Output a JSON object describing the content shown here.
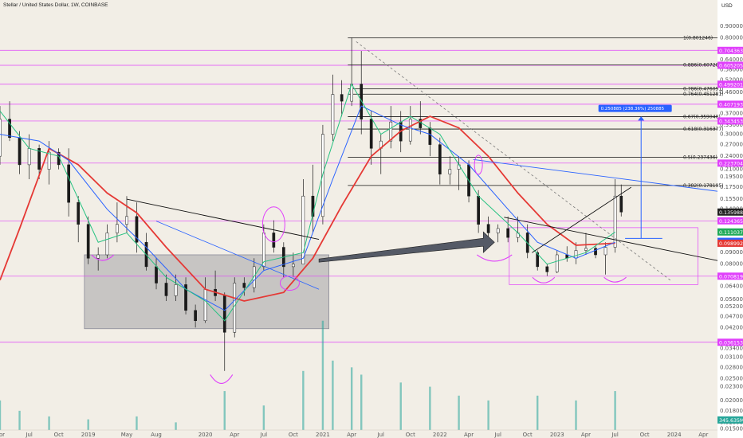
{
  "header": {
    "symbol_title": "Stellar / United States Dollar, 1W, COINBASE",
    "currency": "USD"
  },
  "chart_data": {
    "type": "candlestick",
    "title": "Stellar / United States Dollar, 1W, COINBASE",
    "y_scale": "log",
    "ylim": [
      0.0148,
      1.05
    ],
    "x_range": [
      "2018-04-01",
      "2024-05-15"
    ],
    "x_tick_labels": [
      {
        "label": "Apr",
        "date": "2018-04-01"
      },
      {
        "label": "Jul",
        "date": "2018-07-01"
      },
      {
        "label": "Oct",
        "date": "2018-10-01"
      },
      {
        "label": "2019",
        "date": "2019-01-01"
      },
      {
        "label": "May",
        "date": "2019-05-01"
      },
      {
        "label": "Aug",
        "date": "2019-08-01"
      },
      {
        "label": "2020",
        "date": "2020-01-01"
      },
      {
        "label": "Apr",
        "date": "2020-04-01"
      },
      {
        "label": "Jul",
        "date": "2020-07-01"
      },
      {
        "label": "Oct",
        "date": "2020-10-01"
      },
      {
        "label": "2021",
        "date": "2021-01-01"
      },
      {
        "label": "Apr",
        "date": "2021-04-01"
      },
      {
        "label": "Jul",
        "date": "2021-07-01"
      },
      {
        "label": "Oct",
        "date": "2021-10-01"
      },
      {
        "label": "2022",
        "date": "2022-01-01"
      },
      {
        "label": "Apr",
        "date": "2022-04-01"
      },
      {
        "label": "Jul",
        "date": "2022-07-01"
      },
      {
        "label": "Oct",
        "date": "2022-10-01"
      },
      {
        "label": "2023",
        "date": "2023-01-01"
      },
      {
        "label": "Apr",
        "date": "2023-04-01"
      },
      {
        "label": "Jul",
        "date": "2023-07-01"
      },
      {
        "label": "Oct",
        "date": "2023-10-01"
      },
      {
        "label": "2024",
        "date": "2024-01-01"
      },
      {
        "label": "Apr",
        "date": "2024-04-01"
      }
    ],
    "y_tick_labels": [
      "0.900000",
      "0.800000",
      "0.640000",
      "0.580000",
      "0.520000",
      "0.460000",
      "0.400000",
      "0.370000",
      "0.330000",
      "0.300000",
      "0.270000",
      "0.240000",
      "0.210000",
      "0.195000",
      "0.175000",
      "0.155000",
      "0.140000",
      "0.090000",
      "0.080000",
      "0.064000",
      "0.056000",
      "0.052000",
      "0.047000",
      "0.042000",
      "0.034000",
      "0.031000",
      "0.028000",
      "0.025000",
      "0.023000",
      "0.020000",
      "0.018000",
      "0.016000",
      "0.015000"
    ],
    "fib_levels": [
      {
        "label": "1(0.801246)",
        "value": 0.801246
      },
      {
        "label": "0.886(0.607207)",
        "value": 0.607207
      },
      {
        "label": "0.786(0.476091)",
        "value": 0.476091
      },
      {
        "label": "0.764(0.451281)",
        "value": 0.451281
      },
      {
        "label": "0.67(0.359040)",
        "value": 0.35904
      },
      {
        "label": "0.618(0.316377)",
        "value": 0.316377
      },
      {
        "label": "0.5(0.237436)",
        "value": 0.237436
      },
      {
        "label": "0.382(0.178195)",
        "value": 0.178195
      }
    ],
    "horizontal_levels": [
      0.704363,
      0.605205,
      0.499201,
      0.407193,
      0.343453,
      0.223704,
      0.124365,
      0.070819,
      0.036153
    ],
    "price_badges": [
      {
        "label": "0.704363",
        "value": 0.704363,
        "color": "#e040fb"
      },
      {
        "label": "0.605205",
        "value": 0.605205,
        "color": "#e040fb"
      },
      {
        "label": "0.499201",
        "value": 0.499201,
        "color": "#e040fb"
      },
      {
        "label": "0.407193",
        "value": 0.407193,
        "color": "#e040fb"
      },
      {
        "label": "0.343453",
        "value": 0.343453,
        "color": "#e040fb"
      },
      {
        "label": "0.223704",
        "value": 0.223704,
        "color": "#e040fb"
      },
      {
        "label": "0.135988",
        "value": 0.135988,
        "color": "#222222"
      },
      {
        "label": "0.124365",
        "value": 0.124365,
        "color": "#e040fb"
      },
      {
        "label": "0.111037",
        "value": 0.111037,
        "color": "#1faa59"
      },
      {
        "label": "0.100940",
        "value": 0.10094,
        "color": "#2962ff"
      },
      {
        "label": "0.098992",
        "value": 0.098992,
        "color": "#e53935"
      },
      {
        "label": "0.070819",
        "value": 0.070819,
        "color": "#e040fb"
      },
      {
        "label": "0.036153",
        "value": 0.036153,
        "color": "#e040fb"
      },
      {
        "label": "345.635M",
        "value": 0.0164,
        "color": "#26a69a"
      }
    ],
    "measure_label": "0.250885 (238.36%) 250885",
    "volume_value_label": "345.635M",
    "series": [
      {
        "name": "",
        "color": "#e53935",
        "points": [
          [
            "2018-04-01",
            0.068
          ],
          [
            "2018-06-01",
            0.115
          ],
          [
            "2018-09-01",
            0.26
          ],
          [
            "2018-12-01",
            0.22
          ],
          [
            "2019-03-01",
            0.165
          ],
          [
            "2019-06-01",
            0.135
          ],
          [
            "2019-09-01",
            0.095
          ],
          [
            "2020-01-01",
            0.062
          ],
          [
            "2020-05-01",
            0.055
          ],
          [
            "2020-09-01",
            0.06
          ],
          [
            "2020-12-01",
            0.085
          ],
          [
            "2021-03-01",
            0.145
          ],
          [
            "2021-06-01",
            0.24
          ],
          [
            "2021-09-01",
            0.31
          ],
          [
            "2021-12-01",
            0.36
          ],
          [
            "2022-03-01",
            0.32
          ],
          [
            "2022-06-01",
            0.24
          ],
          [
            "2022-09-01",
            0.165
          ],
          [
            "2022-12-01",
            0.12
          ],
          [
            "2023-03-01",
            0.097
          ],
          [
            "2023-07-01",
            0.099
          ]
        ]
      },
      {
        "name": "",
        "color": "#2962ff",
        "points": [
          [
            "2018-04-01",
            0.3
          ],
          [
            "2018-08-01",
            0.28
          ],
          [
            "2018-11-01",
            0.23
          ],
          [
            "2019-03-01",
            0.14
          ],
          [
            "2019-07-01",
            0.095
          ],
          [
            "2019-11-01",
            0.062
          ],
          [
            "2020-03-01",
            0.05
          ],
          [
            "2020-07-01",
            0.075
          ],
          [
            "2020-11-01",
            0.085
          ],
          [
            "2021-02-01",
            0.19
          ],
          [
            "2021-05-01",
            0.4
          ],
          [
            "2021-09-01",
            0.33
          ],
          [
            "2021-12-01",
            0.3
          ],
          [
            "2022-04-01",
            0.22
          ],
          [
            "2022-08-01",
            0.14
          ],
          [
            "2022-11-01",
            0.1
          ],
          [
            "2023-03-01",
            0.085
          ],
          [
            "2023-07-01",
            0.1
          ]
        ]
      },
      {
        "name": "",
        "color": "#26c281",
        "points": [
          [
            "2018-04-01",
            0.38
          ],
          [
            "2018-07-01",
            0.26
          ],
          [
            "2018-10-01",
            0.24
          ],
          [
            "2019-02-01",
            0.1
          ],
          [
            "2019-05-01",
            0.11
          ],
          [
            "2019-09-01",
            0.07
          ],
          [
            "2020-01-01",
            0.055
          ],
          [
            "2020-03-01",
            0.045
          ],
          [
            "2020-07-01",
            0.082
          ],
          [
            "2020-11-01",
            0.09
          ],
          [
            "2021-01-01",
            0.2
          ],
          [
            "2021-04-01",
            0.5
          ],
          [
            "2021-07-01",
            0.3
          ],
          [
            "2021-10-01",
            0.36
          ],
          [
            "2022-01-01",
            0.3
          ],
          [
            "2022-05-01",
            0.16
          ],
          [
            "2022-09-01",
            0.11
          ],
          [
            "2022-12-01",
            0.08
          ],
          [
            "2023-04-01",
            0.09
          ],
          [
            "2023-07-01",
            0.111
          ]
        ]
      }
    ],
    "candles_ohlc": [
      [
        "2018-04-01",
        0.24,
        0.4,
        0.22,
        0.35
      ],
      [
        "2018-05-01",
        0.35,
        0.42,
        0.28,
        0.29
      ],
      [
        "2018-06-01",
        0.29,
        0.31,
        0.2,
        0.22
      ],
      [
        "2018-07-01",
        0.22,
        0.3,
        0.19,
        0.26
      ],
      [
        "2018-08-01",
        0.26,
        0.27,
        0.19,
        0.21
      ],
      [
        "2018-09-01",
        0.21,
        0.28,
        0.18,
        0.25
      ],
      [
        "2018-10-01",
        0.25,
        0.26,
        0.21,
        0.22
      ],
      [
        "2018-11-01",
        0.22,
        0.26,
        0.13,
        0.15
      ],
      [
        "2018-12-01",
        0.15,
        0.16,
        0.1,
        0.12
      ],
      [
        "2019-01-01",
        0.12,
        0.13,
        0.08,
        0.085
      ],
      [
        "2019-02-01",
        0.085,
        0.095,
        0.075,
        0.088
      ],
      [
        "2019-03-01",
        0.088,
        0.12,
        0.085,
        0.11
      ],
      [
        "2019-04-01",
        0.11,
        0.15,
        0.1,
        0.12
      ],
      [
        "2019-05-01",
        0.12,
        0.16,
        0.11,
        0.13
      ],
      [
        "2019-06-01",
        0.13,
        0.15,
        0.09,
        0.1
      ],
      [
        "2019-07-01",
        0.1,
        0.11,
        0.075,
        0.078
      ],
      [
        "2019-08-01",
        0.078,
        0.085,
        0.062,
        0.066
      ],
      [
        "2019-09-01",
        0.066,
        0.072,
        0.055,
        0.058
      ],
      [
        "2019-10-01",
        0.058,
        0.072,
        0.055,
        0.065
      ],
      [
        "2019-11-01",
        0.065,
        0.07,
        0.048,
        0.05
      ],
      [
        "2019-12-01",
        0.05,
        0.053,
        0.042,
        0.045
      ],
      [
        "2020-01-01",
        0.045,
        0.07,
        0.044,
        0.062
      ],
      [
        "2020-02-01",
        0.062,
        0.075,
        0.055,
        0.058
      ],
      [
        "2020-03-01",
        0.058,
        0.06,
        0.027,
        0.04
      ],
      [
        "2020-04-01",
        0.04,
        0.07,
        0.038,
        0.066
      ],
      [
        "2020-05-01",
        0.066,
        0.07,
        0.058,
        0.063
      ],
      [
        "2020-06-01",
        0.063,
        0.085,
        0.06,
        0.078
      ],
      [
        "2020-07-01",
        0.078,
        0.12,
        0.075,
        0.11
      ],
      [
        "2020-08-01",
        0.11,
        0.125,
        0.09,
        0.095
      ],
      [
        "2020-09-01",
        0.095,
        0.1,
        0.07,
        0.078
      ],
      [
        "2020-10-01",
        0.078,
        0.09,
        0.07,
        0.08
      ],
      [
        "2020-11-01",
        0.08,
        0.19,
        0.08,
        0.16
      ],
      [
        "2020-12-01",
        0.16,
        0.22,
        0.11,
        0.13
      ],
      [
        "2021-01-01",
        0.13,
        0.33,
        0.12,
        0.3
      ],
      [
        "2021-02-01",
        0.3,
        0.55,
        0.28,
        0.45
      ],
      [
        "2021-03-01",
        0.45,
        0.52,
        0.36,
        0.42
      ],
      [
        "2021-04-01",
        0.42,
        0.8,
        0.4,
        0.5
      ],
      [
        "2021-05-01",
        0.5,
        0.7,
        0.3,
        0.35
      ],
      [
        "2021-06-01",
        0.35,
        0.38,
        0.22,
        0.26
      ],
      [
        "2021-07-01",
        0.26,
        0.3,
        0.2,
        0.28
      ],
      [
        "2021-08-01",
        0.28,
        0.4,
        0.26,
        0.34
      ],
      [
        "2021-09-01",
        0.34,
        0.38,
        0.25,
        0.28
      ],
      [
        "2021-10-01",
        0.28,
        0.4,
        0.27,
        0.35
      ],
      [
        "2021-11-01",
        0.35,
        0.42,
        0.3,
        0.32
      ],
      [
        "2021-12-01",
        0.32,
        0.34,
        0.24,
        0.27
      ],
      [
        "2022-01-01",
        0.27,
        0.29,
        0.18,
        0.2
      ],
      [
        "2022-02-01",
        0.2,
        0.24,
        0.18,
        0.21
      ],
      [
        "2022-03-01",
        0.21,
        0.24,
        0.17,
        0.22
      ],
      [
        "2022-04-01",
        0.22,
        0.23,
        0.15,
        0.16
      ],
      [
        "2022-05-01",
        0.16,
        0.17,
        0.11,
        0.12
      ],
      [
        "2022-06-01",
        0.12,
        0.13,
        0.1,
        0.11
      ],
      [
        "2022-07-01",
        0.11,
        0.12,
        0.1,
        0.115
      ],
      [
        "2022-08-01",
        0.115,
        0.13,
        0.1,
        0.105
      ],
      [
        "2022-09-01",
        0.105,
        0.13,
        0.1,
        0.11
      ],
      [
        "2022-10-01",
        0.11,
        0.12,
        0.085,
        0.09
      ],
      [
        "2022-11-01",
        0.09,
        0.092,
        0.075,
        0.078
      ],
      [
        "2022-12-01",
        0.078,
        0.08,
        0.071,
        0.074
      ],
      [
        "2023-01-01",
        0.074,
        0.092,
        0.073,
        0.088
      ],
      [
        "2023-02-01",
        0.088,
        0.096,
        0.082,
        0.085
      ],
      [
        "2023-03-01",
        0.085,
        0.1,
        0.08,
        0.092
      ],
      [
        "2023-04-01",
        0.092,
        0.11,
        0.088,
        0.094
      ],
      [
        "2023-05-01",
        0.094,
        0.096,
        0.085,
        0.088
      ],
      [
        "2023-06-01",
        0.088,
        0.1,
        0.072,
        0.095
      ],
      [
        "2023-07-01",
        0.095,
        0.19,
        0.09,
        0.16
      ],
      [
        "2023-07-20",
        0.16,
        0.18,
        0.13,
        0.136
      ]
    ],
    "volume": [
      [
        "2018-04-01",
        0.02
      ],
      [
        "2018-06-01",
        0.018
      ],
      [
        "2018-09-01",
        0.017
      ],
      [
        "2019-01-01",
        0.0165
      ],
      [
        "2019-06-01",
        0.017
      ],
      [
        "2019-10-01",
        0.016
      ],
      [
        "2020-03-01",
        0.022
      ],
      [
        "2020-07-01",
        0.019
      ],
      [
        "2020-11-01",
        0.027
      ],
      [
        "2021-01-01",
        0.045
      ],
      [
        "2021-02-01",
        0.03
      ],
      [
        "2021-04-01",
        0.028
      ],
      [
        "2021-05-01",
        0.026
      ],
      [
        "2021-09-01",
        0.024
      ],
      [
        "2021-12-01",
        0.023
      ],
      [
        "2022-03-01",
        0.021
      ],
      [
        "2022-06-01",
        0.02
      ],
      [
        "2022-11-01",
        0.021
      ],
      [
        "2023-03-01",
        0.02
      ],
      [
        "2023-07-01",
        0.022
      ]
    ]
  }
}
